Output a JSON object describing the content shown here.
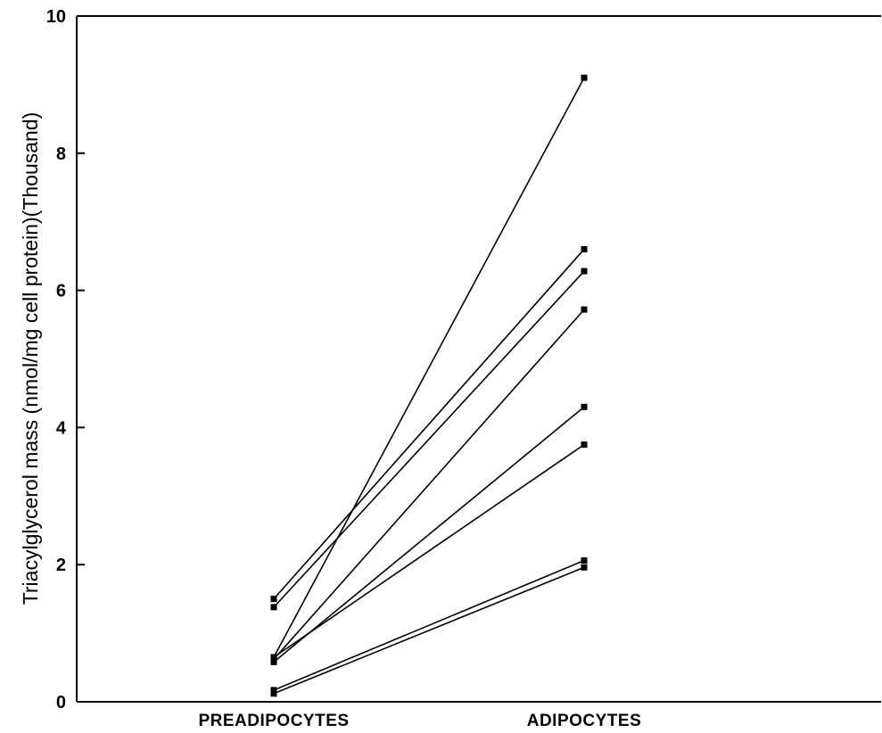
{
  "chart_data": {
    "type": "line",
    "title": "",
    "ylabel": "Triacylglycerol mass (nmol/mg cell protein)(Thousand)",
    "xlabel": "",
    "categories": [
      "PREADIPOCYTES",
      "ADIPOCYTES"
    ],
    "ylim": [
      0,
      10
    ],
    "yticks": [
      "0",
      "2",
      "4",
      "6",
      "8",
      "10"
    ],
    "grid": false,
    "series": [
      {
        "values": [
          0.65,
          9.1
        ]
      },
      {
        "values": [
          1.5,
          6.6
        ]
      },
      {
        "values": [
          1.38,
          6.28
        ]
      },
      {
        "values": [
          0.62,
          5.72
        ]
      },
      {
        "values": [
          0.58,
          4.3
        ]
      },
      {
        "values": [
          0.65,
          3.75
        ]
      },
      {
        "values": [
          0.17,
          2.06
        ]
      },
      {
        "values": [
          0.12,
          1.96
        ]
      }
    ]
  }
}
